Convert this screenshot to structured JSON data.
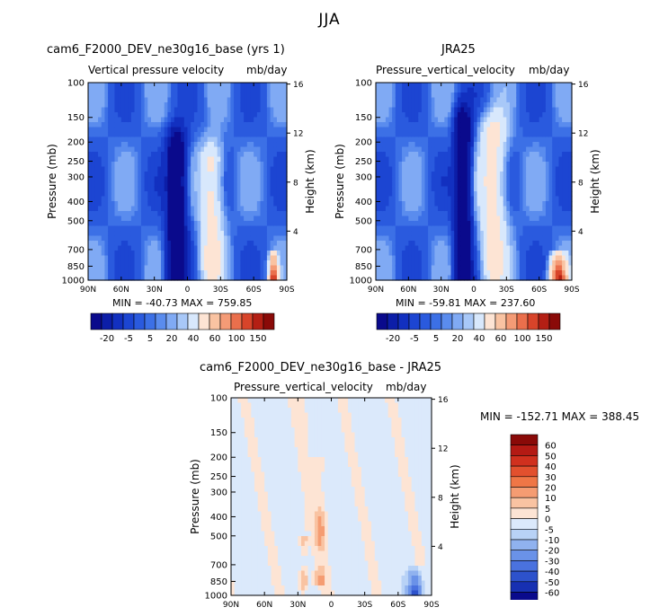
{
  "figure": {
    "title": "JJA"
  },
  "chart_data": [
    {
      "type": "heatmap",
      "title": "cam6_F2000_DEV_ne30g16_base (yrs 1)",
      "subtitle_left": "Vertical pressure velocity",
      "subtitle_right": "mb/day",
      "ylabel": "Pressure (mb)",
      "ylabel_right": "Height (km)",
      "x_ticks": [
        "90N",
        "60N",
        "30N",
        "0",
        "30S",
        "60S",
        "90S"
      ],
      "y_ticks": [
        100,
        150,
        200,
        250,
        300,
        400,
        500,
        700,
        850,
        1000
      ],
      "y_right_ticks": [
        16,
        12,
        8,
        4
      ],
      "stats": {
        "min": "-40.73",
        "max": "759.85",
        "text": "MIN = -40.73    MAX = 759.85"
      },
      "colorbar": [
        "-20",
        "-5",
        "5",
        "20",
        "40",
        "60",
        "100",
        "150"
      ],
      "features": [
        {
          "kind": "strong-ascent",
          "lat": 10,
          "p_top": 220,
          "p_bottom": 1000,
          "half_width": 8
        },
        {
          "kind": "weak-ascent",
          "lat": -22,
          "p_top": 250,
          "p_bottom": 850,
          "half_width": 10
        },
        {
          "kind": "subsidence",
          "lat": -78,
          "p_top": 700,
          "p_bottom": 1000,
          "half_width": 3
        }
      ]
    },
    {
      "type": "heatmap",
      "title": "JRA25",
      "subtitle_left": "Pressure_vertical_velocity",
      "subtitle_right": "mb/day",
      "ylabel": "Pressure (mb)",
      "ylabel_right": "Height (km)",
      "x_ticks": [
        "90N",
        "60N",
        "30N",
        "0",
        "30S",
        "60S",
        "90S"
      ],
      "y_ticks": [
        100,
        150,
        200,
        250,
        300,
        400,
        500,
        700,
        850,
        1000
      ],
      "y_right_ticks": [
        16,
        12,
        8,
        4
      ],
      "stats": {
        "min": "-59.81",
        "max": "237.60",
        "text": "MIN = -59.81    MAX = 237.60"
      },
      "colorbar": [
        "-20",
        "-5",
        "5",
        "20",
        "40",
        "60",
        "100",
        "150"
      ],
      "features": [
        {
          "kind": "strong-ascent",
          "lat": 10,
          "p_top": 170,
          "p_bottom": 1000,
          "half_width": 7
        },
        {
          "kind": "weak-ascent",
          "lat": -18,
          "p_top": 180,
          "p_bottom": 850,
          "half_width": 12
        },
        {
          "kind": "subsidence",
          "lat": -78,
          "p_top": 700,
          "p_bottom": 1000,
          "half_width": 6
        }
      ]
    },
    {
      "type": "heatmap",
      "title": "cam6_F2000_DEV_ne30g16_base - JRA25",
      "subtitle_left": "Pressure_vertical_velocity",
      "subtitle_right": "mb/day",
      "ylabel": "Pressure (mb)",
      "ylabel_right": "Height (km)",
      "x_ticks": [
        "90N",
        "60N",
        "30N",
        "0",
        "30S",
        "60S",
        "90S"
      ],
      "y_ticks": [
        100,
        150,
        200,
        250,
        300,
        400,
        500,
        700,
        850,
        1000
      ],
      "y_right_ticks": [
        16,
        12,
        8,
        4
      ],
      "stats": {
        "min": "-152.71",
        "max": "388.45",
        "text": "MIN = -152.71    MAX = 388.45"
      },
      "colorbar": [
        "60",
        "50",
        "40",
        "30",
        "20",
        "10",
        "5",
        "0",
        "-5",
        "-10",
        "-20",
        "-30",
        "-40",
        "-50",
        "-60"
      ],
      "features": [
        {
          "kind": "positive",
          "lat": 10,
          "p_top": 200,
          "p_bottom": 900,
          "half_width": 5
        },
        {
          "kind": "positive",
          "lat": 25,
          "p_top": 500,
          "p_bottom": 1000,
          "half_width": 4
        },
        {
          "kind": "negative",
          "lat": -75,
          "p_top": 700,
          "p_bottom": 1000,
          "half_width": 6
        }
      ]
    }
  ],
  "palettes": {
    "omega": [
      "#0a0a8c",
      "#0c1ea8",
      "#1230c0",
      "#1c45d2",
      "#2a5ade",
      "#3c70e6",
      "#5a8cee",
      "#80aaf4",
      "#a8c8f8",
      "#d8e8fc",
      "#fde4d4",
      "#f9c3a2",
      "#f49b76",
      "#ea6f4c",
      "#d8442a",
      "#b41f14",
      "#8a0a08"
    ],
    "diff": [
      "#8a0a08",
      "#b41a14",
      "#d0301e",
      "#e2502e",
      "#ef7646",
      "#f59c72",
      "#f9c3a2",
      "#fde4d4",
      "#dbe9fb",
      "#b8d2f6",
      "#90b2ef",
      "#6a92e8",
      "#4a72df",
      "#2d52cc",
      "#1730b2",
      "#0a0a8c"
    ]
  }
}
